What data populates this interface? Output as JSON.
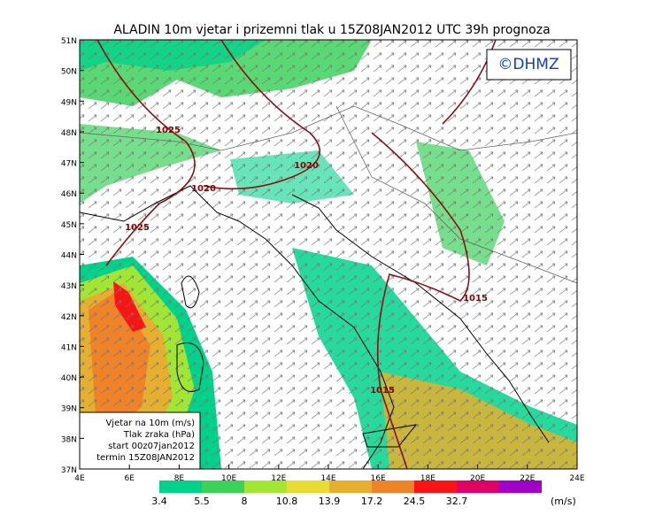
{
  "title": "ALADIN 10m vjetar i prizemni tlak u 15Z08JAN2012 UTC 39h prognoza",
  "credit": "©DHMZ",
  "lat_labels": [
    "51N",
    "50N",
    "49N",
    "48N",
    "47N",
    "46N",
    "45N",
    "44N",
    "43N",
    "42N",
    "41N",
    "40N",
    "39N",
    "38N",
    "37N"
  ],
  "lon_labels": [
    "4E",
    "6E",
    "8E",
    "10E",
    "12E",
    "14E",
    "16E",
    "18E",
    "20E",
    "22E",
    "24E"
  ],
  "isobar_labels": [
    "1025",
    "1020",
    "1020",
    "1025",
    "1015",
    "1015"
  ],
  "info_box": [
    "Vjetar na 10m (m/s)",
    "Tlak zraka (hPa)",
    "start 00z07jan2012",
    "termin 15Z08JAN2012"
  ],
  "colorbar": {
    "labels": [
      "3.4",
      "5.5",
      "8",
      "10.8",
      "13.9",
      "17.2",
      "24.5",
      "32.7"
    ],
    "unit": "(m/s)",
    "colors": [
      "#00d28c",
      "#3cd25a",
      "#a0e632",
      "#e6dc32",
      "#e6af2d",
      "#f08228",
      "#fa1414",
      "#e10064",
      "#a000c8"
    ]
  }
}
